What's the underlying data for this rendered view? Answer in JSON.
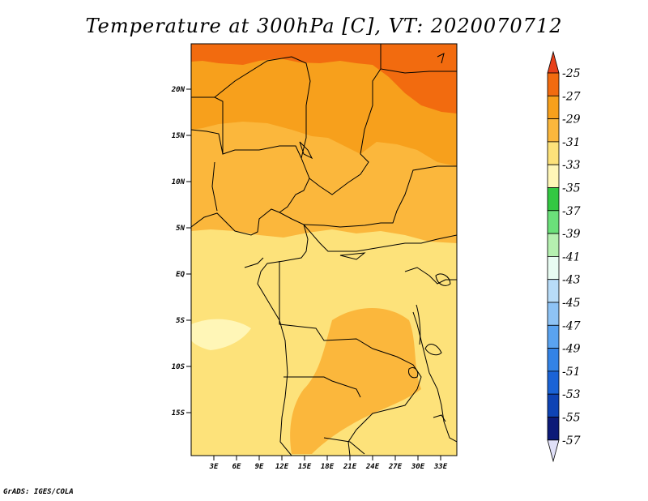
{
  "title": "Temperature at 300hPa [C], VT: 2020070712",
  "credit": "GrADS: IGES/COLA",
  "lat_ticks": [
    "20N",
    "15N",
    "10N",
    "5N",
    "EQ",
    "5S",
    "10S",
    "15S"
  ],
  "lon_ticks": [
    "3E",
    "6E",
    "9E",
    "12E",
    "15E",
    "18E",
    "21E",
    "24E",
    "27E",
    "30E",
    "33E"
  ],
  "colorbar": {
    "labels": [
      "-25",
      "-27",
      "-29",
      "-31",
      "-33",
      "-35",
      "-37",
      "-39",
      "-41",
      "-43",
      "-45",
      "-47",
      "-49",
      "-51",
      "-53",
      "-55",
      "-57"
    ],
    "colors": [
      "#e8401a",
      "#f26b0f",
      "#f7a01c",
      "#fbb73c",
      "#fde27a",
      "#fff6b7",
      "#33c842",
      "#6be07a",
      "#b5f0b0",
      "#e8fcf2",
      "#b8dcf8",
      "#8ec3f5",
      "#5aa3f0",
      "#3383e6",
      "#1a63d6",
      "#0e43b4",
      "#0c1a78",
      "#e0e0f8"
    ]
  },
  "map_fill": {
    "top_band": "#f26b0f",
    "north": "#f7a01c",
    "mid": "#fbb73c",
    "south": "#fde27a",
    "pale": "#fff6b7"
  }
}
